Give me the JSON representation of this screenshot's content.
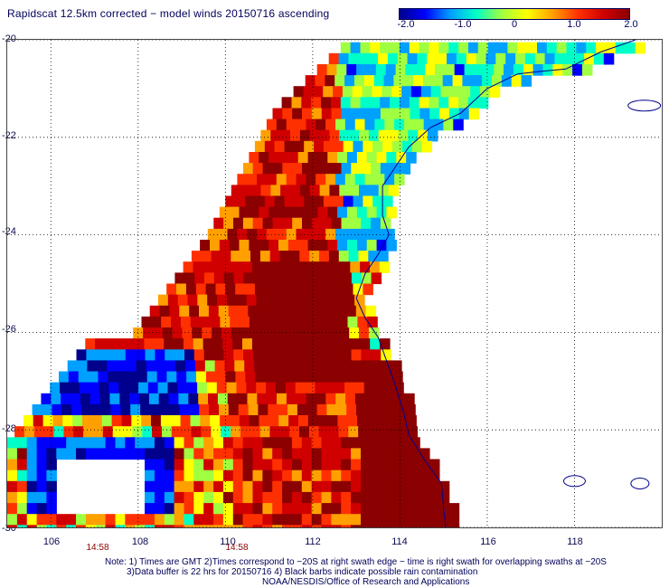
{
  "title": "Rapidscat 12.5km corrected − model winds 20150716 ascending",
  "colorbar": {
    "labels": [
      "-2.0",
      "-1.0",
      "0",
      "1.0",
      "2.0"
    ],
    "values": [
      -2.0,
      -1.0,
      0,
      1.0,
      2.0
    ],
    "colors": [
      "#00008c",
      "#0000ff",
      "#00a0ff",
      "#00ffc8",
      "#a0ff40",
      "#ffff00",
      "#ffa000",
      "#ff3000",
      "#d00000",
      "#8b0000"
    ]
  },
  "map": {
    "lon_range": [
      105,
      120
    ],
    "lat_range": [
      -30,
      -20
    ],
    "lat_labels": [
      "-20",
      "-22",
      "-24",
      "-26",
      "-28",
      "-30"
    ],
    "lat_values": [
      -20,
      -22,
      -24,
      -26,
      -28,
      -30
    ],
    "lon_labels": [
      "106",
      "108",
      "110",
      "112",
      "114",
      "116",
      "118"
    ],
    "lon_values": [
      106,
      108,
      110,
      112,
      114,
      116,
      118
    ],
    "time_labels": [
      {
        "text": "14:58",
        "lon": 106.9
      },
      {
        "text": "14:58",
        "lon": 110.1
      }
    ],
    "coast_color": "#00008b",
    "grid_style": "dotted"
  },
  "notes": {
    "line1": "Note: 1) Times are GMT 2)Times correspond to −20S at right swath edge − time is right swath for overlapping swaths at −20S",
    "line2": "3)Data buffer is 22 hrs for 20150716 4) Black barbs indicate possible rain contamination",
    "line3": "NOAA/NESDIS/Office of Research and Applications"
  }
}
